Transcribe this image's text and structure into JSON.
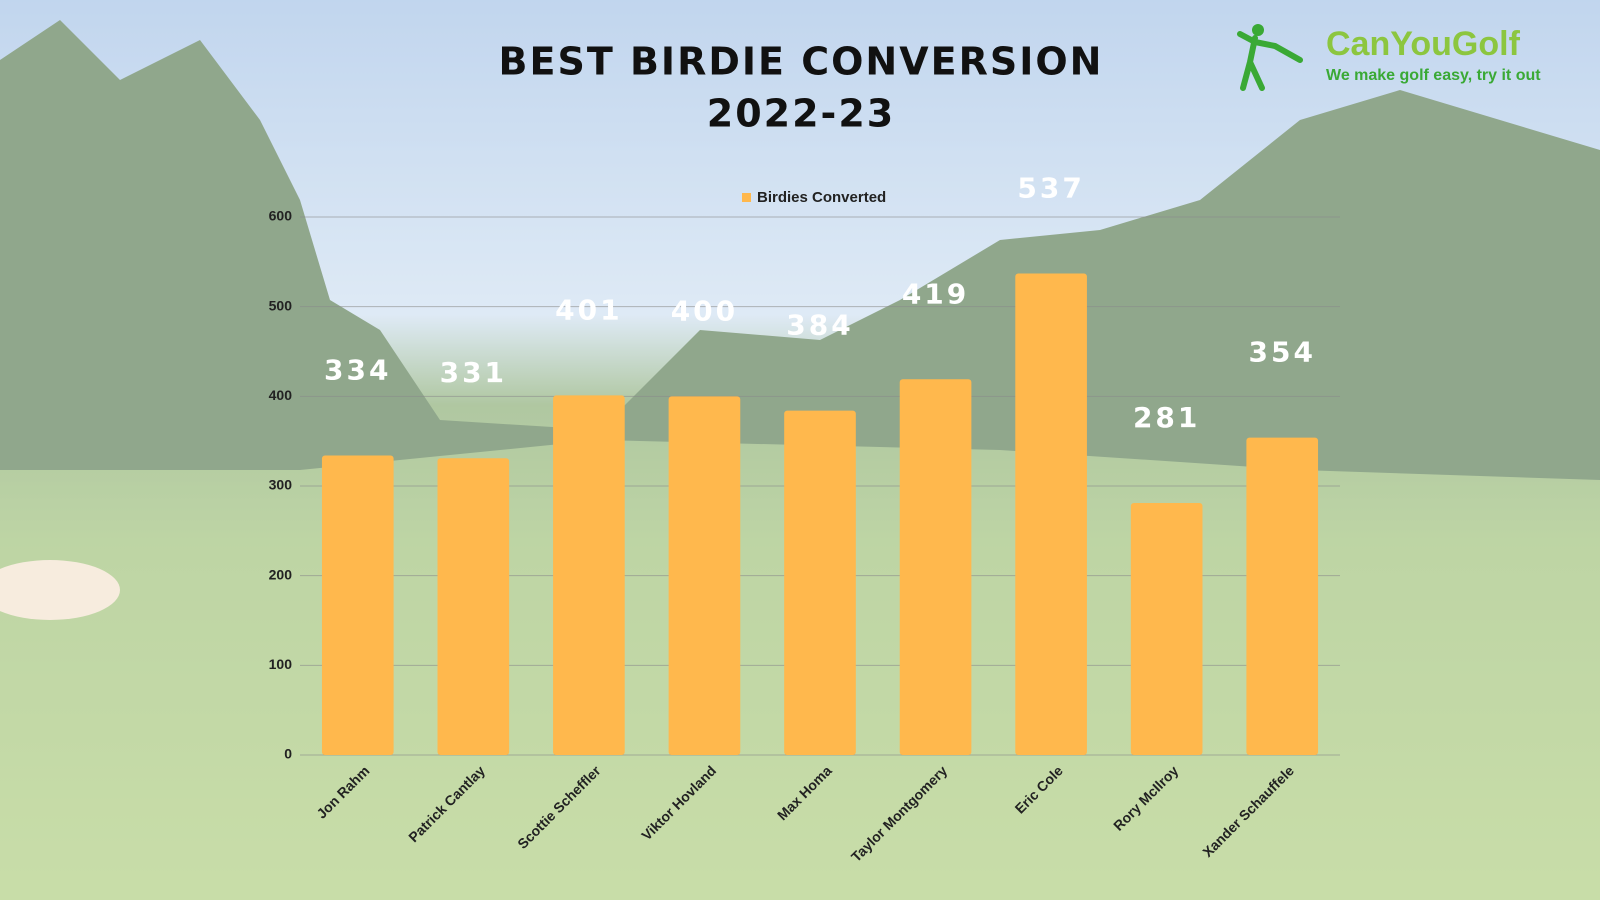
{
  "chart_data": {
    "type": "bar",
    "title": "BEST BIRDIE CONVERSION",
    "subtitle": "2022-23",
    "categories": [
      "Jon Rahm",
      "Patrick Cantlay",
      "Scottie Scheffler",
      "Viktor Hovland",
      "Max Homa",
      "Taylor Montgomery",
      "Eric Cole",
      "Rory McIlroy",
      "Xander Schauffele"
    ],
    "series": [
      {
        "name": "Birdies Converted",
        "color": "#ffb84d",
        "values": [
          334,
          331,
          401,
          400,
          384,
          419,
          537,
          281,
          354
        ]
      }
    ],
    "ylim": [
      0,
      600
    ],
    "yticks": [
      0,
      100,
      200,
      300,
      400,
      500,
      600
    ],
    "grid": true,
    "legend": "top"
  },
  "logo": {
    "name": "CanYouGolf",
    "tagline": "We make golf easy, try it out"
  }
}
